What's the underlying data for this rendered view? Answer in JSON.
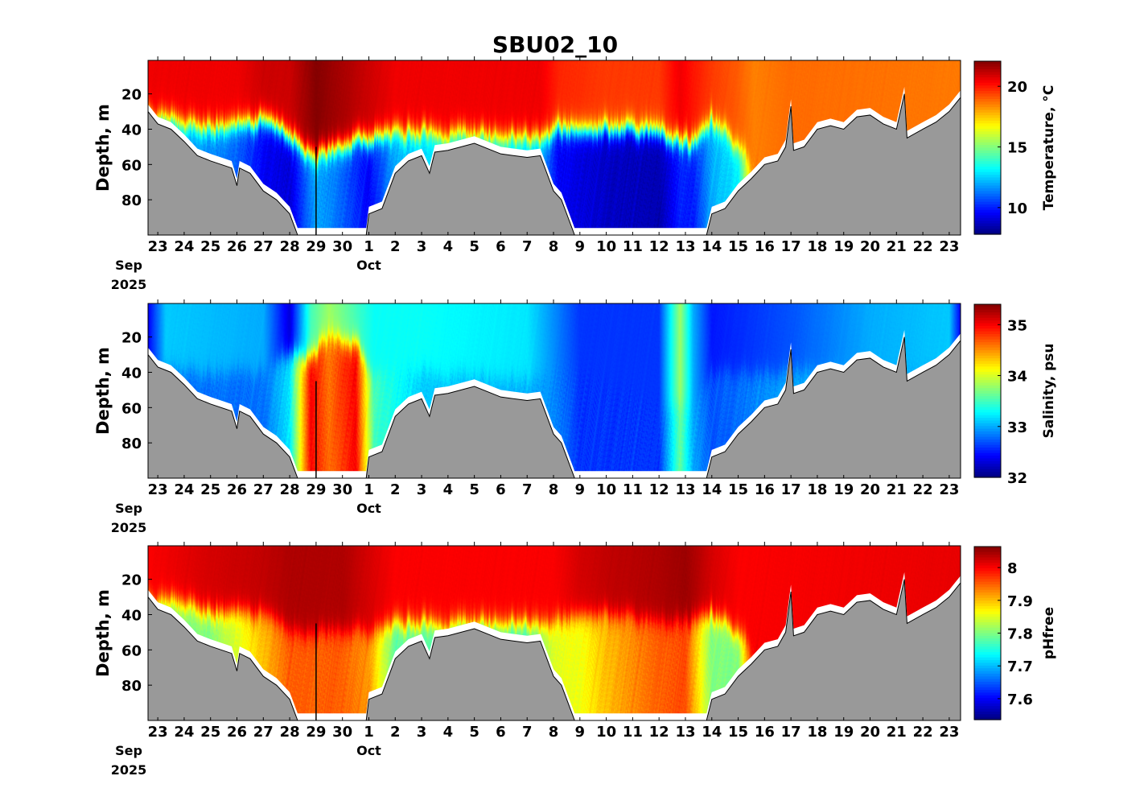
{
  "title": "SBU02_10",
  "chart_data": {
    "type": "heatmap",
    "x_units": "days since 2025-09-23 00:00",
    "xlim": [
      -0.37,
      30.43
    ],
    "x_ticks": [
      {
        "d": 0,
        "label": "23"
      },
      {
        "d": 1,
        "label": "24"
      },
      {
        "d": 2,
        "label": "25"
      },
      {
        "d": 3,
        "label": "26"
      },
      {
        "d": 4,
        "label": "27"
      },
      {
        "d": 5,
        "label": "28"
      },
      {
        "d": 6,
        "label": "29"
      },
      {
        "d": 7,
        "label": "30"
      },
      {
        "d": 8,
        "label": "1"
      },
      {
        "d": 9,
        "label": "2"
      },
      {
        "d": 10,
        "label": "3"
      },
      {
        "d": 11,
        "label": "4"
      },
      {
        "d": 12,
        "label": "5"
      },
      {
        "d": 13,
        "label": "6"
      },
      {
        "d": 14,
        "label": "7"
      },
      {
        "d": 15,
        "label": "8"
      },
      {
        "d": 16,
        "label": "9"
      },
      {
        "d": 17,
        "label": "10"
      },
      {
        "d": 18,
        "label": "11"
      },
      {
        "d": 19,
        "label": "12"
      },
      {
        "d": 20,
        "label": "13"
      },
      {
        "d": 21,
        "label": "14"
      },
      {
        "d": 22,
        "label": "15"
      },
      {
        "d": 23,
        "label": "16"
      },
      {
        "d": 24,
        "label": "17"
      },
      {
        "d": 25,
        "label": "18"
      },
      {
        "d": 26,
        "label": "19"
      },
      {
        "d": 27,
        "label": "20"
      },
      {
        "d": 28,
        "label": "21"
      },
      {
        "d": 29,
        "label": "22"
      },
      {
        "d": 30,
        "label": "23"
      }
    ],
    "month_labels": [
      {
        "d": -1.1,
        "label": "Sep",
        "year": "2025"
      },
      {
        "d": 8,
        "label": "Oct"
      }
    ],
    "ylabel": "Depth, m",
    "ylim": [
      1,
      100
    ],
    "y_ticks": [
      20,
      40,
      60,
      80
    ],
    "colormap": "jet",
    "bathymetry_color": "#999999",
    "bathymetry": [
      [
        -0.37,
        30
      ],
      [
        0,
        37
      ],
      [
        0.5,
        40
      ],
      [
        1,
        47
      ],
      [
        1.5,
        55
      ],
      [
        2,
        58
      ],
      [
        2.8,
        62
      ],
      [
        3,
        72
      ],
      [
        3.1,
        62
      ],
      [
        3.5,
        65
      ],
      [
        4,
        75
      ],
      [
        4.5,
        80
      ],
      [
        5,
        88
      ],
      [
        5.3,
        100
      ],
      [
        7.9,
        100
      ],
      [
        8,
        88
      ],
      [
        8.5,
        85
      ],
      [
        9,
        65
      ],
      [
        9.5,
        58
      ],
      [
        10,
        55
      ],
      [
        10.3,
        65
      ],
      [
        10.5,
        53
      ],
      [
        11,
        52
      ],
      [
        12,
        48
      ],
      [
        13,
        54
      ],
      [
        14,
        56
      ],
      [
        14.5,
        55
      ],
      [
        15,
        75
      ],
      [
        15.3,
        80
      ],
      [
        15.8,
        100
      ],
      [
        20.8,
        100
      ],
      [
        21,
        88
      ],
      [
        21.5,
        85
      ],
      [
        22,
        75
      ],
      [
        22.5,
        68
      ],
      [
        23,
        60
      ],
      [
        23.5,
        58
      ],
      [
        23.8,
        50
      ],
      [
        24,
        27
      ],
      [
        24.1,
        52
      ],
      [
        24.5,
        50
      ],
      [
        25,
        40
      ],
      [
        25.5,
        38
      ],
      [
        26,
        40
      ],
      [
        26.5,
        33
      ],
      [
        27,
        32
      ],
      [
        27.5,
        37
      ],
      [
        28,
        40
      ],
      [
        28.3,
        20
      ],
      [
        28.4,
        45
      ],
      [
        29,
        40
      ],
      [
        29.5,
        36
      ],
      [
        30,
        30
      ],
      [
        30.43,
        22
      ]
    ],
    "panels": [
      {
        "variable": "Temperature",
        "colorbar_label": "Temperature, °C",
        "clim": [
          7.8,
          22.07
        ],
        "cbar_ticks": [
          {
            "v": 10,
            "label": "10"
          },
          {
            "v": 15,
            "label": "15"
          },
          {
            "v": 20,
            "label": "20"
          }
        ],
        "profile_fields": [
          "day",
          "surface",
          "deep",
          "mixed_layer_depth_m"
        ],
        "profiles": [
          [
            -0.37,
            20.5,
            12,
            30
          ],
          [
            1,
            20.5,
            12,
            38
          ],
          [
            3,
            20.5,
            11,
            38
          ],
          [
            4,
            21,
            9.5,
            35
          ],
          [
            5,
            21,
            9,
            45
          ],
          [
            6,
            22,
            12,
            55
          ],
          [
            7,
            21.5,
            11,
            50
          ],
          [
            8,
            21,
            9.5,
            45
          ],
          [
            9,
            20.5,
            12,
            42
          ],
          [
            11,
            20.5,
            13,
            42
          ],
          [
            13,
            20.5,
            13,
            44
          ],
          [
            14.5,
            20.5,
            12,
            45
          ],
          [
            15.2,
            19.8,
            9.5,
            40
          ],
          [
            17,
            19.5,
            8.8,
            40
          ],
          [
            19,
            19.5,
            8.5,
            42
          ],
          [
            19.8,
            20.5,
            10,
            48
          ],
          [
            20.3,
            20,
            10,
            48
          ],
          [
            21,
            19.5,
            12,
            35
          ],
          [
            22,
            19,
            13,
            50
          ],
          [
            22.6,
            18.5,
            18.5,
            60
          ],
          [
            24,
            18.8,
            18.8,
            60
          ],
          [
            30.43,
            18.6,
            18.6,
            60
          ]
        ]
      },
      {
        "variable": "Salinity",
        "colorbar_label": "Salinity, psu",
        "clim": [
          32.0,
          35.4
        ],
        "cbar_ticks": [
          {
            "v": 32,
            "label": "32"
          },
          {
            "v": 33,
            "label": "33"
          },
          {
            "v": 34,
            "label": "34"
          },
          {
            "v": 35,
            "label": "35"
          }
        ],
        "profile_fields": [
          "day",
          "surface",
          "deep",
          "mixed_layer_depth_m"
        ],
        "profiles": [
          [
            -0.37,
            32.4,
            32.8,
            40
          ],
          [
            0.3,
            33.1,
            32.8,
            40
          ],
          [
            4,
            33.0,
            32.8,
            40
          ],
          [
            5,
            32.3,
            33.2,
            30
          ],
          [
            5.8,
            33.5,
            35,
            30
          ],
          [
            6.5,
            33.8,
            34.6,
            20
          ],
          [
            7.5,
            33.5,
            35,
            25
          ],
          [
            8.2,
            33.3,
            33.5,
            40
          ],
          [
            10,
            33.3,
            33.1,
            40
          ],
          [
            14,
            33.2,
            33.0,
            45
          ],
          [
            15,
            32.9,
            32.9,
            40
          ],
          [
            16,
            32.6,
            32.6,
            40
          ],
          [
            19,
            32.6,
            32.6,
            60
          ],
          [
            19.8,
            33.8,
            33.6,
            60
          ],
          [
            20.3,
            33.0,
            33.0,
            60
          ],
          [
            21,
            32.5,
            32.7,
            40
          ],
          [
            24,
            32.7,
            33,
            40
          ],
          [
            27,
            33.0,
            33,
            40
          ],
          [
            30,
            33.1,
            33,
            40
          ],
          [
            30.43,
            32.4,
            32.4,
            40
          ]
        ]
      },
      {
        "variable": "pHfree",
        "colorbar_label": "pHfree",
        "clim": [
          7.536,
          8.064
        ],
        "cbar_ticks": [
          {
            "v": 7.6,
            "label": "7.6"
          },
          {
            "v": 7.7,
            "label": "7.7"
          },
          {
            "v": 7.8,
            "label": "7.8"
          },
          {
            "v": 7.9,
            "label": "7.9"
          },
          {
            "v": 8.0,
            "label": "8"
          }
        ],
        "profile_fields": [
          "day",
          "surface",
          "deep",
          "mixed_layer_depth_m"
        ],
        "profiles": [
          [
            -0.37,
            8.0,
            7.8,
            30
          ],
          [
            2,
            8.02,
            7.8,
            38
          ],
          [
            4,
            8.03,
            7.9,
            40
          ],
          [
            5,
            8.04,
            7.95,
            50
          ],
          [
            7,
            8.04,
            7.95,
            50
          ],
          [
            8,
            8.02,
            7.92,
            50
          ],
          [
            9,
            8.0,
            7.78,
            45
          ],
          [
            14,
            8.0,
            7.76,
            45
          ],
          [
            15,
            8.0,
            7.85,
            45
          ],
          [
            16,
            8.02,
            7.86,
            40
          ],
          [
            17,
            8.03,
            7.9,
            40
          ],
          [
            19,
            8.04,
            7.95,
            45
          ],
          [
            20,
            8.05,
            7.96,
            45
          ],
          [
            21,
            8.02,
            7.8,
            40
          ],
          [
            22,
            8.0,
            7.8,
            50
          ],
          [
            22.6,
            8.0,
            8.0,
            60
          ],
          [
            30.43,
            8.01,
            8.01,
            60
          ]
        ]
      }
    ]
  }
}
